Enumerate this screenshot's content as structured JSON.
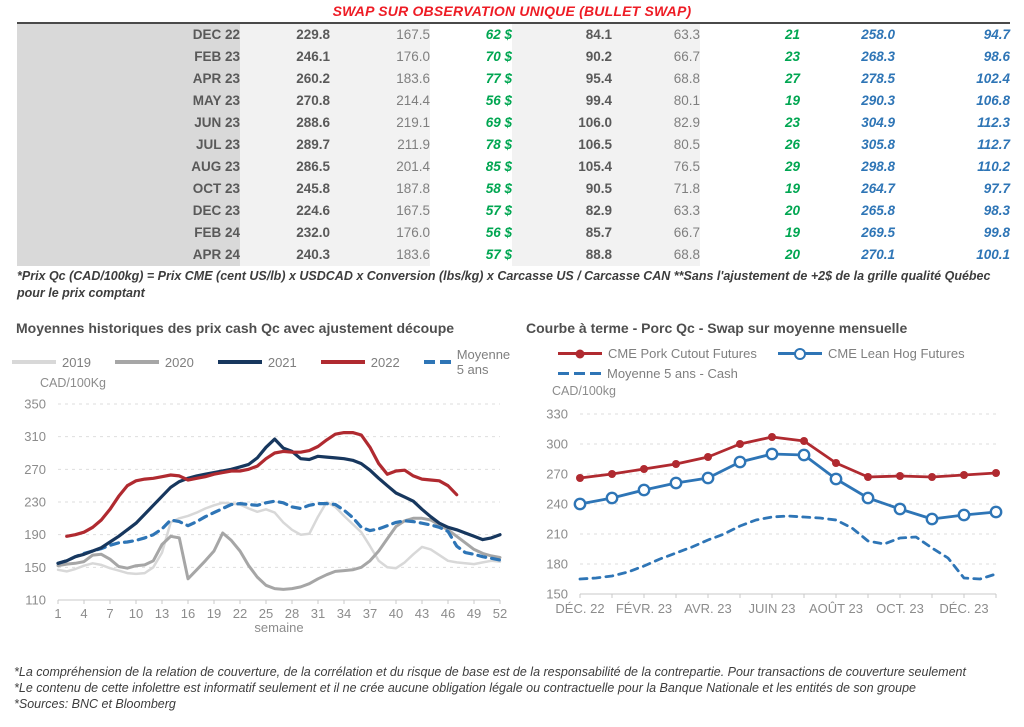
{
  "title": "SWAP SUR OBSERVATION UNIQUE (BULLET SWAP)",
  "table": {
    "rows": [
      [
        "DEC 22",
        "229.8",
        "167.5",
        "62 $",
        "84.1",
        "63.3",
        "21",
        "258.0",
        "94.7"
      ],
      [
        "FEB 23",
        "246.1",
        "176.0",
        "70 $",
        "90.2",
        "66.7",
        "23",
        "268.3",
        "98.6"
      ],
      [
        "APR 23",
        "260.2",
        "183.6",
        "77 $",
        "95.4",
        "68.8",
        "27",
        "278.5",
        "102.4"
      ],
      [
        "MAY 23",
        "270.8",
        "214.4",
        "56 $",
        "99.4",
        "80.1",
        "19",
        "290.3",
        "106.8"
      ],
      [
        "JUN 23",
        "288.6",
        "219.1",
        "69 $",
        "106.0",
        "82.9",
        "23",
        "304.9",
        "112.3"
      ],
      [
        "JUL 23",
        "289.7",
        "211.9",
        "78 $",
        "106.5",
        "80.5",
        "26",
        "305.8",
        "112.7"
      ],
      [
        "AUG 23",
        "286.5",
        "201.4",
        "85 $",
        "105.4",
        "76.5",
        "29",
        "298.8",
        "110.2"
      ],
      [
        "OCT 23",
        "245.8",
        "187.8",
        "58 $",
        "90.5",
        "71.8",
        "19",
        "264.7",
        "97.7"
      ],
      [
        "DEC 23",
        "224.6",
        "167.5",
        "57 $",
        "82.9",
        "63.3",
        "20",
        "265.8",
        "98.3"
      ],
      [
        "FEB 24",
        "232.0",
        "176.0",
        "56 $",
        "85.7",
        "66.7",
        "19",
        "269.5",
        "99.8"
      ],
      [
        "APR 24",
        "240.3",
        "183.6",
        "57 $",
        "88.8",
        "68.8",
        "20",
        "270.1",
        "100.1"
      ]
    ]
  },
  "table_note": "*Prix Qc (CAD/100kg) = Prix CME (cent US/lb) x USDCAD x Conversion (lbs/kg) x Carcasse US / Carcasse CAN **Sans l'ajustement de +2$ de la grille qualité Québec pour le prix comptant",
  "colors": {
    "title_red": "#ee1c25",
    "table_green": "#00a651",
    "table_blue": "#2e75b6",
    "series_red": "#b02a30",
    "series_navy": "#17375e",
    "series_steelblue": "#2e75b6",
    "series_lightgray": "#d8d8d8",
    "series_gray": "#a6a6a6"
  },
  "chart_data": [
    {
      "type": "line",
      "title": "Moyennes historiques des prix cash Qc avec ajustement découpe",
      "ylabel": "CAD/100Kg",
      "xlabel": "semaine",
      "ylim": [
        110,
        350
      ],
      "yticks": [
        110,
        150,
        190,
        230,
        270,
        310,
        350
      ],
      "xticks": [
        1,
        4,
        7,
        10,
        13,
        16,
        19,
        22,
        25,
        28,
        31,
        34,
        37,
        40,
        43,
        46,
        49,
        52
      ],
      "grid": "dashed-horizontal",
      "legend_position": "top",
      "series": [
        {
          "name": "2019",
          "color": "#d8d8d8",
          "width": 2.5,
          "dash": null,
          "values": [
            147,
            145,
            148,
            152,
            155,
            153,
            149,
            146,
            143,
            142,
            143,
            150,
            168,
            205,
            210,
            213,
            217,
            222,
            226,
            229,
            228,
            227,
            222,
            218,
            221,
            217,
            205,
            196,
            190,
            191,
            212,
            230,
            224,
            213,
            203,
            193,
            176,
            158,
            150,
            149,
            156,
            166,
            175,
            172,
            165,
            158,
            156,
            155,
            154,
            156,
            158,
            157
          ]
        },
        {
          "name": "2020",
          "color": "#a6a6a6",
          "width": 3,
          "dash": null,
          "values": [
            152,
            154,
            155,
            157,
            165,
            166,
            160,
            151,
            149,
            152,
            153,
            158,
            178,
            188,
            186,
            136,
            147,
            158,
            170,
            192,
            183,
            170,
            152,
            138,
            128,
            124,
            123,
            124,
            126,
            130,
            136,
            141,
            145,
            146,
            147,
            150,
            158,
            170,
            185,
            200,
            207,
            210,
            210,
            208,
            202,
            196,
            188,
            180,
            172,
            167,
            164,
            162
          ]
        },
        {
          "name": "2021",
          "color": "#17375e",
          "width": 3.2,
          "dash": null,
          "values": [
            155,
            158,
            163,
            166,
            170,
            174,
            181,
            188,
            196,
            204,
            215,
            226,
            237,
            248,
            255,
            259,
            262,
            264,
            266,
            268,
            270,
            273,
            276,
            284,
            297,
            307,
            296,
            292,
            283,
            282,
            286,
            285,
            284,
            283,
            281,
            277,
            269,
            259,
            250,
            241,
            236,
            231,
            221,
            212,
            204,
            199,
            196,
            192,
            188,
            184,
            186,
            190
          ]
        },
        {
          "name": "2022",
          "color": "#b02a30",
          "width": 3.2,
          "dash": null,
          "values": [
            null,
            188,
            190,
            193,
            199,
            208,
            221,
            237,
            250,
            256,
            258,
            259,
            261,
            263,
            262,
            257,
            259,
            261,
            264,
            266,
            268,
            268,
            270,
            274,
            283,
            290,
            292,
            291,
            291,
            293,
            298,
            306,
            313,
            315,
            315,
            312,
            297,
            277,
            264,
            268,
            269,
            262,
            258,
            257,
            256,
            250,
            239,
            null,
            null,
            null,
            null,
            null
          ]
        },
        {
          "name": "Moyenne 5 ans",
          "color": "#2e75b6",
          "width": 3.2,
          "dash": "8 6",
          "values": [
            155,
            158,
            163,
            167,
            170,
            173,
            177,
            180,
            181,
            183,
            186,
            190,
            197,
            208,
            206,
            201,
            206,
            212,
            217,
            222,
            227,
            228,
            227,
            226,
            229,
            231,
            229,
            224,
            222,
            226,
            228,
            228,
            227,
            220,
            211,
            199,
            195,
            197,
            201,
            205,
            207,
            206,
            204,
            202,
            199,
            194,
            176,
            168,
            166,
            163,
            161,
            159
          ]
        }
      ]
    },
    {
      "type": "line",
      "title": "Courbe à terme - Porc Qc - Swap sur moyenne mensuelle",
      "ylabel": "CAD/100kg",
      "xlabel": "",
      "ylim": [
        150,
        330
      ],
      "yticks": [
        150,
        180,
        210,
        240,
        270,
        300,
        330
      ],
      "months_count": 14,
      "x_tick_labels": [
        "DÉC. 22",
        "FÉVR. 23",
        "AVR. 23",
        "JUIN 23",
        "AOÛT 23",
        "OCT. 23",
        "DÉC. 23"
      ],
      "grid": "dashed-horizontal",
      "legend_position": "top",
      "series": [
        {
          "name": "CME Pork Cutout Futures",
          "color": "#b02a30",
          "width": 2.8,
          "dash": null,
          "marker": "filled",
          "values": [
            266,
            270,
            275,
            280,
            287,
            300,
            307,
            303,
            281,
            267,
            268,
            267,
            269,
            271
          ]
        },
        {
          "name": "CME Lean Hog Futures",
          "color": "#2e75b6",
          "width": 2.8,
          "dash": null,
          "marker": "open",
          "values": [
            240,
            246,
            254,
            261,
            266,
            282,
            290,
            289,
            265,
            246,
            235,
            225,
            229,
            232
          ]
        },
        {
          "name": "Moyenne 5 ans - Cash",
          "color": "#2e75b6",
          "width": 2.8,
          "dash": "7 6",
          "marker": null,
          "x_step": 0.5,
          "values": [
            165,
            166,
            168,
            172,
            178,
            185,
            191,
            197,
            204,
            210,
            218,
            224,
            227,
            228,
            227,
            226,
            224,
            216,
            203,
            200,
            206,
            207,
            196,
            186,
            166,
            165,
            170
          ]
        }
      ]
    }
  ],
  "footer": {
    "lines": [
      "*La compréhension de la relation de couverture, de la corrélation et du risque de base est de la responsabilité de la contrepartie. Pour transactions de couverture seulement",
      "*Le contenu de cette infolettre est informatif seulement et il ne crée aucune obligation légale ou contractuelle pour la Banque Nationale et les entités de son groupe",
      "*Sources: BNC et Bloomberg"
    ]
  }
}
